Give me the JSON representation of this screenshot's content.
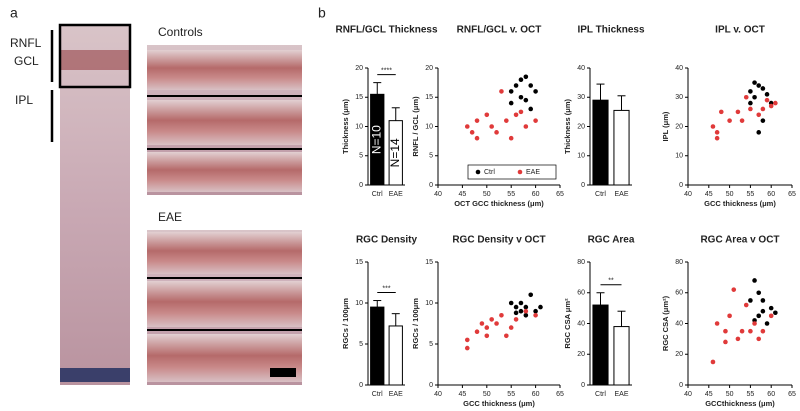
{
  "figure": {
    "panel_labels": [
      "a",
      "b"
    ],
    "layer_labels": [
      "RNFL",
      "GCL",
      "IPL"
    ],
    "group_labels": [
      "Controls",
      "EAE"
    ]
  },
  "chart_data": [
    {
      "type": "bar",
      "title": "RNFL/GCL Thickness",
      "ylabel": "Thickness (μm)",
      "categories": [
        "Ctrl",
        "EAE"
      ],
      "values": [
        15.5,
        11
      ],
      "errors": [
        2,
        2.2
      ],
      "colors": [
        "#000000",
        "#ffffff"
      ],
      "bar_labels": [
        "N=10",
        "N=14"
      ],
      "significance": "****",
      "ylim": [
        0,
        20
      ],
      "yticks": [
        0,
        5,
        10,
        15,
        20
      ]
    },
    {
      "type": "scatter",
      "title": "RNFL/GCL v. OCT",
      "xlabel": "OCT GCC thickness (μm)",
      "ylabel": "RNFL / GCL (μm)",
      "xlim": [
        40,
        65
      ],
      "xticks": [
        40,
        45,
        50,
        55,
        60,
        65
      ],
      "ylim": [
        0,
        20
      ],
      "yticks": [
        0,
        5,
        10,
        15,
        20
      ],
      "legend": "lower right",
      "series": [
        {
          "name": "Ctrl",
          "color": "#000000",
          "x": [
            55,
            56,
            57,
            58,
            59,
            60,
            57,
            55,
            58,
            59
          ],
          "values": [
            16,
            17,
            18,
            18.5,
            17,
            16,
            15,
            14,
            14.5,
            13
          ]
        },
        {
          "name": "EAE",
          "color": "#e03a3a",
          "x": [
            46,
            47,
            48,
            50,
            51,
            52,
            53,
            54,
            55,
            56,
            57,
            58,
            60,
            48
          ],
          "values": [
            10,
            9,
            11,
            12,
            10,
            9,
            16,
            11,
            8,
            12,
            12.5,
            10,
            11,
            8
          ]
        }
      ]
    },
    {
      "type": "bar",
      "title": "IPL Thickness",
      "ylabel": "Thickness (μm)",
      "categories": [
        "Ctrl",
        "EAE"
      ],
      "values": [
        29,
        25.5
      ],
      "errors": [
        5.5,
        5
      ],
      "colors": [
        "#000000",
        "#ffffff"
      ],
      "ylim": [
        0,
        40
      ],
      "yticks": [
        0,
        10,
        20,
        30,
        40
      ]
    },
    {
      "type": "scatter",
      "title": "IPL v. OCT",
      "xlabel": "GCC thickness (μm)",
      "ylabel": "IPL (μm)",
      "xlim": [
        40,
        65
      ],
      "xticks": [
        40,
        45,
        50,
        55,
        60,
        65
      ],
      "ylim": [
        0,
        40
      ],
      "yticks": [
        0,
        10,
        20,
        30,
        40
      ],
      "series": [
        {
          "color": "#000000",
          "x": [
            55,
            56,
            57,
            58,
            56,
            59,
            57,
            58,
            60,
            55
          ],
          "values": [
            32,
            35,
            34,
            33,
            30,
            31,
            18,
            22,
            28,
            28
          ]
        },
        {
          "color": "#e03a3a",
          "x": [
            46,
            47,
            48,
            47,
            52,
            53,
            54,
            55,
            58,
            59,
            60,
            61,
            57,
            50
          ],
          "values": [
            20,
            18,
            25,
            16,
            25,
            22,
            30,
            26,
            26,
            29,
            27,
            28,
            24,
            22
          ]
        }
      ]
    },
    {
      "type": "bar",
      "title": "RGC Density",
      "ylabel": "RGCs / 100μm",
      "categories": [
        "Ctrl",
        "EAE"
      ],
      "values": [
        9.5,
        7.2
      ],
      "errors": [
        0.8,
        1.5
      ],
      "colors": [
        "#000000",
        "#ffffff"
      ],
      "significance": "***",
      "ylim": [
        0,
        15
      ],
      "yticks": [
        0,
        5,
        10,
        15
      ]
    },
    {
      "type": "scatter",
      "title": "RGC Density v OCT",
      "xlabel": "GCC thickness (μm)",
      "ylabel": "RGCs / 100μm",
      "xlim": [
        40,
        65
      ],
      "xticks": [
        40,
        45,
        50,
        55,
        60,
        65
      ],
      "ylim": [
        0,
        15
      ],
      "yticks": [
        0,
        5,
        10,
        15
      ],
      "series": [
        {
          "color": "#000000",
          "x": [
            55,
            56,
            57,
            58,
            59,
            60,
            58,
            61,
            56,
            57
          ],
          "values": [
            10,
            9.5,
            9,
            9.5,
            11,
            9,
            8.5,
            9.5,
            8.8,
            10
          ]
        },
        {
          "color": "#e03a3a",
          "x": [
            46,
            46,
            48,
            49,
            50,
            51,
            52,
            53,
            54,
            55,
            56,
            58,
            60,
            50
          ],
          "values": [
            4.5,
            5.5,
            6.5,
            7.5,
            7,
            8,
            7.5,
            8.5,
            6,
            7,
            8,
            9,
            8.5,
            6
          ]
        }
      ]
    },
    {
      "type": "bar",
      "title": "RGC Area",
      "ylabel": "RGC CSA μm²",
      "categories": [
        "Ctrl",
        "EAE"
      ],
      "values": [
        52,
        38
      ],
      "errors": [
        8,
        10
      ],
      "colors": [
        "#000000",
        "#ffffff"
      ],
      "significance": "**",
      "ylim": [
        0,
        80
      ],
      "yticks": [
        0,
        20,
        40,
        60,
        80
      ]
    },
    {
      "type": "scatter",
      "title": "RGC Area v OCT",
      "xlabel": "GCCthickness (μm)",
      "ylabel": "RGC CSA (μm²)",
      "xlim": [
        40,
        65
      ],
      "xticks": [
        40,
        45,
        50,
        55,
        60,
        65
      ],
      "ylim": [
        0,
        80
      ],
      "yticks": [
        0,
        20,
        40,
        60,
        80
      ],
      "series": [
        {
          "color": "#000000",
          "x": [
            55,
            56,
            57,
            58,
            57,
            59,
            60,
            58,
            56,
            61
          ],
          "values": [
            55,
            68,
            60,
            48,
            45,
            40,
            50,
            55,
            42,
            47
          ]
        },
        {
          "color": "#e03a3a",
          "x": [
            46,
            47,
            49,
            50,
            51,
            52,
            53,
            54,
            55,
            56,
            57,
            58,
            60,
            49
          ],
          "values": [
            15,
            40,
            35,
            45,
            62,
            30,
            35,
            52,
            35,
            40,
            30,
            35,
            45,
            28
          ]
        }
      ]
    }
  ]
}
